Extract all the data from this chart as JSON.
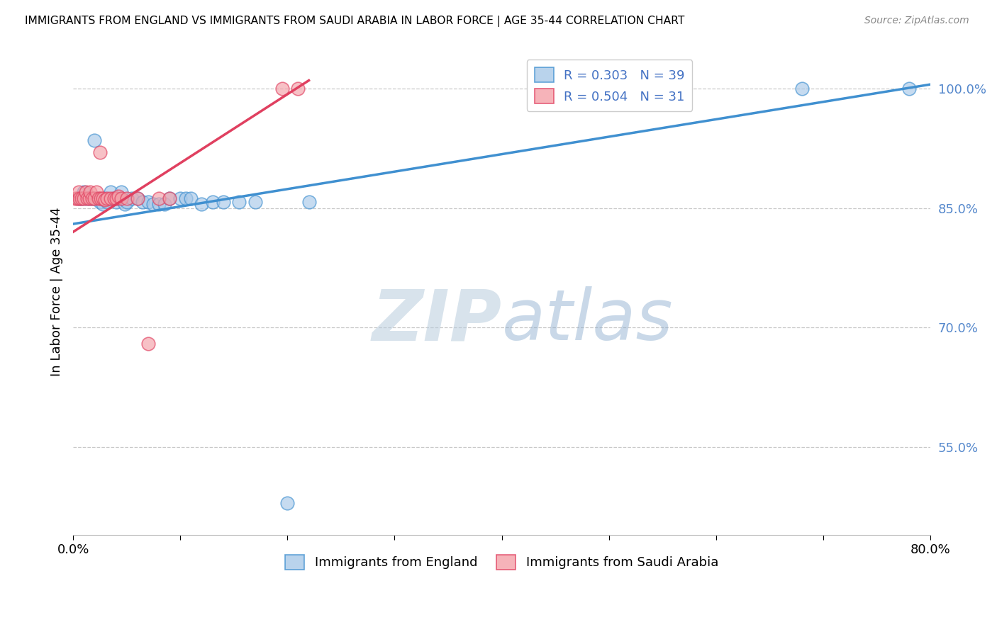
{
  "title": "IMMIGRANTS FROM ENGLAND VS IMMIGRANTS FROM SAUDI ARABIA IN LABOR FORCE | AGE 35-44 CORRELATION CHART",
  "source": "Source: ZipAtlas.com",
  "ylabel": "In Labor Force | Age 35-44",
  "x_min": 0.0,
  "x_max": 0.8,
  "y_min": 0.44,
  "y_max": 1.05,
  "y_ticks": [
    0.55,
    0.7,
    0.85,
    1.0
  ],
  "y_tick_labels": [
    "55.0%",
    "70.0%",
    "85.0%",
    "100.0%"
  ],
  "x_ticks": [
    0.0,
    0.1,
    0.2,
    0.3,
    0.4,
    0.5,
    0.6,
    0.7,
    0.8
  ],
  "x_tick_labels": [
    "0.0%",
    "",
    "",
    "",
    "",
    "",
    "",
    "",
    "80.0%"
  ],
  "legend_blue_label": "R = 0.303   N = 39",
  "legend_pink_label": "R = 0.504   N = 31",
  "legend_bottom_blue": "Immigrants from England",
  "legend_bottom_pink": "Immigrants from Saudi Arabia",
  "blue_color": "#a8c8e8",
  "pink_color": "#f4a0a8",
  "trendline_blue": "#4090d0",
  "trendline_pink": "#e04060",
  "blue_scatter_x": [
    0.005,
    0.008,
    0.01,
    0.012,
    0.015,
    0.018,
    0.02,
    0.022,
    0.025,
    0.028,
    0.03,
    0.032,
    0.035,
    0.038,
    0.04,
    0.042,
    0.045,
    0.048,
    0.05,
    0.055,
    0.06,
    0.065,
    0.07,
    0.075,
    0.08,
    0.085,
    0.09,
    0.1,
    0.105,
    0.11,
    0.12,
    0.13,
    0.14,
    0.155,
    0.17,
    0.2,
    0.22,
    0.68,
    0.78
  ],
  "blue_scatter_y": [
    0.862,
    0.862,
    0.87,
    0.862,
    0.862,
    0.862,
    0.935,
    0.862,
    0.858,
    0.855,
    0.862,
    0.858,
    0.87,
    0.862,
    0.858,
    0.862,
    0.87,
    0.855,
    0.858,
    0.862,
    0.862,
    0.858,
    0.858,
    0.855,
    0.855,
    0.855,
    0.862,
    0.862,
    0.862,
    0.862,
    0.855,
    0.858,
    0.858,
    0.858,
    0.858,
    0.48,
    0.858,
    1.0,
    1.0
  ],
  "pink_scatter_x": [
    0.002,
    0.004,
    0.005,
    0.006,
    0.008,
    0.01,
    0.012,
    0.013,
    0.015,
    0.016,
    0.018,
    0.02,
    0.022,
    0.024,
    0.025,
    0.026,
    0.028,
    0.03,
    0.032,
    0.035,
    0.038,
    0.04,
    0.042,
    0.045,
    0.05,
    0.06,
    0.07,
    0.08,
    0.09,
    0.195,
    0.21
  ],
  "pink_scatter_y": [
    0.862,
    0.862,
    0.87,
    0.862,
    0.862,
    0.862,
    0.87,
    0.862,
    0.862,
    0.87,
    0.862,
    0.862,
    0.87,
    0.862,
    0.92,
    0.862,
    0.862,
    0.86,
    0.862,
    0.862,
    0.862,
    0.862,
    0.865,
    0.862,
    0.862,
    0.862,
    0.68,
    0.862,
    0.862,
    1.0,
    1.0
  ],
  "blue_trendline_x0": 0.0,
  "blue_trendline_x1": 0.8,
  "blue_trendline_y0": 0.83,
  "blue_trendline_y1": 1.005,
  "pink_trendline_x0": 0.0,
  "pink_trendline_x1": 0.22,
  "pink_trendline_y0": 0.82,
  "pink_trendline_y1": 1.01,
  "watermark_zip": "ZIP",
  "watermark_atlas": "atlas",
  "background_color": "#ffffff",
  "grid_color": "#c8c8c8"
}
